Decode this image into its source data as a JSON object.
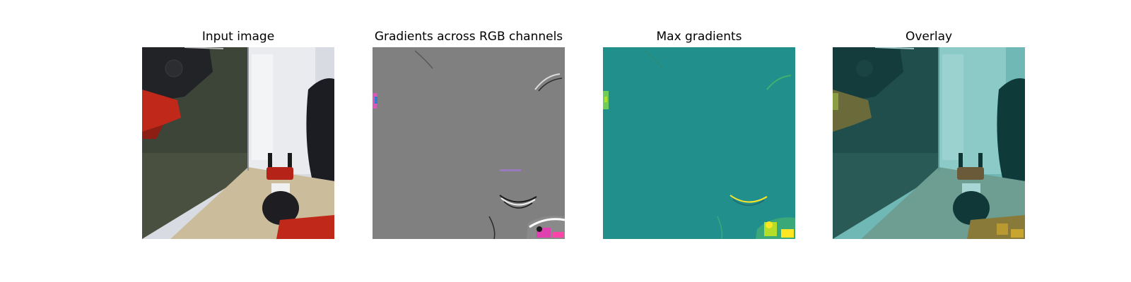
{
  "figure": {
    "panels": [
      {
        "id": "input",
        "title": "Input image"
      },
      {
        "id": "gradients",
        "title": "Gradients across RGB channels"
      },
      {
        "id": "max",
        "title": "Max gradients"
      },
      {
        "id": "overlay",
        "title": "Overlay"
      }
    ]
  },
  "colors": {
    "gradient_gray": "#808080",
    "max_teal": "#21908d",
    "highlight_yellow": "#fde725",
    "highlight_green": "#6ece58",
    "gripper_red": "#c0281a",
    "floor_beige": "#cbbd9c",
    "overlay_teal": "#2a8c88"
  }
}
